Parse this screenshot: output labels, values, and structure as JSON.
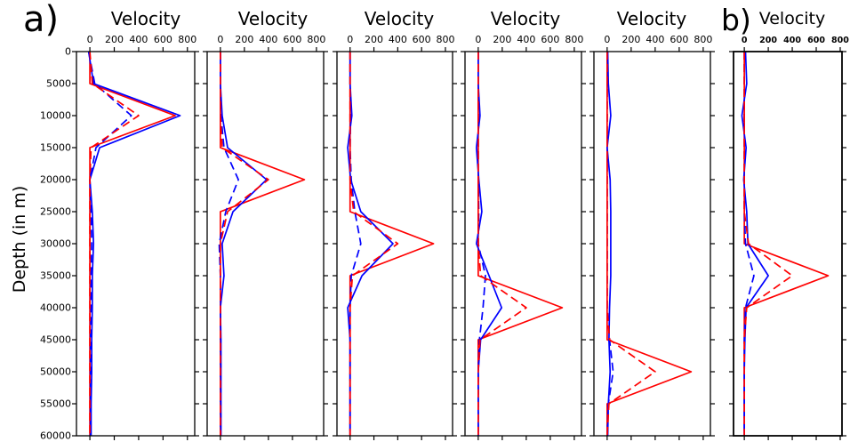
{
  "chart_data": [
    {
      "type": "line",
      "panel_label": "a)",
      "xlabel": "Velocity",
      "ylabel": "Depth (in m)",
      "xlim": [
        -110,
        860
      ],
      "ylim": [
        0,
        60000
      ],
      "y_inverted": true,
      "xticks": [
        0,
        200,
        400,
        600,
        800
      ],
      "yticks": [
        0,
        5000,
        10000,
        15000,
        20000,
        25000,
        30000,
        35000,
        40000,
        45000,
        50000,
        55000,
        60000
      ],
      "ytick_labels_visible": true,
      "depth": [
        0,
        5000,
        10000,
        15000,
        20000,
        25000,
        30000,
        35000,
        40000,
        45000,
        50000,
        55000,
        60000
      ],
      "series": [
        {
          "color": "#ff0000",
          "dashed": false,
          "values": [
            0,
            0,
            700,
            0,
            0,
            0,
            0,
            0,
            0,
            0,
            0,
            0,
            0
          ]
        },
        {
          "color": "#0000ff",
          "dashed": false,
          "values": [
            -10,
            30,
            740,
            80,
            0,
            20,
            30,
            20,
            20,
            15,
            15,
            10,
            10
          ]
        },
        {
          "color": "#0000ff",
          "dashed": true,
          "values": [
            -10,
            40,
            340,
            50,
            0,
            10,
            15,
            10,
            10,
            5,
            5,
            5,
            5
          ]
        },
        {
          "color": "#ff0000",
          "dashed": true,
          "values": [
            0,
            20,
            400,
            10,
            0,
            0,
            0,
            0,
            0,
            0,
            0,
            0,
            0
          ]
        }
      ]
    },
    {
      "type": "line",
      "xlabel": "Velocity",
      "xlim": [
        -110,
        860
      ],
      "ylim": [
        0,
        60000
      ],
      "y_inverted": true,
      "xticks": [
        0,
        200,
        400,
        600,
        800
      ],
      "yticks": [
        0,
        5000,
        10000,
        15000,
        20000,
        25000,
        30000,
        35000,
        40000,
        45000,
        50000,
        55000,
        60000
      ],
      "ytick_labels_visible": false,
      "depth": [
        0,
        5000,
        10000,
        15000,
        20000,
        25000,
        30000,
        35000,
        40000,
        45000,
        50000,
        55000,
        60000
      ],
      "series": [
        {
          "color": "#ff0000",
          "dashed": false,
          "values": [
            0,
            0,
            0,
            0,
            700,
            0,
            0,
            0,
            0,
            0,
            0,
            0,
            0
          ]
        },
        {
          "color": "#0000ff",
          "dashed": false,
          "values": [
            0,
            0,
            15,
            60,
            385,
            105,
            15,
            30,
            0,
            5,
            5,
            5,
            5
          ]
        },
        {
          "color": "#0000ff",
          "dashed": true,
          "values": [
            0,
            0,
            5,
            30,
            150,
            45,
            -10,
            0,
            0,
            0,
            0,
            0,
            0
          ]
        },
        {
          "color": "#ff0000",
          "dashed": true,
          "values": [
            0,
            0,
            0,
            15,
            400,
            60,
            0,
            0,
            0,
            0,
            0,
            0,
            0
          ]
        }
      ]
    },
    {
      "type": "line",
      "xlabel": "Velocity",
      "xlim": [
        -110,
        860
      ],
      "ylim": [
        0,
        60000
      ],
      "y_inverted": true,
      "xticks": [
        0,
        200,
        400,
        600,
        800
      ],
      "yticks": [
        0,
        5000,
        10000,
        15000,
        20000,
        25000,
        30000,
        35000,
        40000,
        45000,
        50000,
        55000,
        60000
      ],
      "ytick_labels_visible": false,
      "depth": [
        0,
        5000,
        10000,
        15000,
        20000,
        25000,
        30000,
        35000,
        40000,
        45000,
        50000,
        55000,
        60000
      ],
      "series": [
        {
          "color": "#ff0000",
          "dashed": false,
          "values": [
            0,
            0,
            0,
            0,
            0,
            0,
            700,
            0,
            0,
            0,
            0,
            0,
            0
          ]
        },
        {
          "color": "#0000ff",
          "dashed": false,
          "values": [
            0,
            0,
            15,
            -20,
            5,
            90,
            360,
            100,
            -20,
            0,
            0,
            0,
            0
          ]
        },
        {
          "color": "#0000ff",
          "dashed": true,
          "values": [
            0,
            0,
            5,
            0,
            10,
            40,
            90,
            10,
            0,
            0,
            0,
            0,
            0
          ]
        },
        {
          "color": "#ff0000",
          "dashed": true,
          "values": [
            0,
            0,
            0,
            0,
            0,
            30,
            400,
            20,
            0,
            0,
            0,
            0,
            0
          ]
        }
      ]
    },
    {
      "type": "line",
      "xlabel": "Velocity",
      "xlim": [
        -110,
        860
      ],
      "ylim": [
        0,
        60000
      ],
      "y_inverted": true,
      "xticks": [
        0,
        200,
        400,
        600,
        800
      ],
      "yticks": [
        0,
        5000,
        10000,
        15000,
        20000,
        25000,
        30000,
        35000,
        40000,
        45000,
        50000,
        55000,
        60000
      ],
      "ytick_labels_visible": false,
      "depth": [
        0,
        5000,
        10000,
        15000,
        20000,
        25000,
        30000,
        35000,
        40000,
        45000,
        50000,
        55000,
        60000
      ],
      "series": [
        {
          "color": "#ff0000",
          "dashed": false,
          "values": [
            0,
            0,
            0,
            0,
            0,
            0,
            0,
            0,
            700,
            0,
            0,
            0,
            0
          ]
        },
        {
          "color": "#0000ff",
          "dashed": false,
          "values": [
            0,
            0,
            15,
            -15,
            5,
            30,
            -15,
            90,
            195,
            20,
            0,
            0,
            0
          ]
        },
        {
          "color": "#0000ff",
          "dashed": true,
          "values": [
            0,
            0,
            0,
            0,
            0,
            5,
            0,
            60,
            40,
            10,
            0,
            0,
            0
          ]
        },
        {
          "color": "#ff0000",
          "dashed": true,
          "values": [
            0,
            0,
            0,
            0,
            0,
            0,
            0,
            20,
            400,
            15,
            0,
            0,
            0
          ]
        }
      ]
    },
    {
      "type": "line",
      "xlabel": "Velocity",
      "xlim": [
        -110,
        860
      ],
      "ylim": [
        0,
        60000
      ],
      "y_inverted": true,
      "xticks": [
        0,
        200,
        400,
        600,
        800
      ],
      "yticks": [
        0,
        5000,
        10000,
        15000,
        20000,
        25000,
        30000,
        35000,
        40000,
        45000,
        50000,
        55000,
        60000
      ],
      "ytick_labels_visible": false,
      "depth": [
        0,
        5000,
        10000,
        15000,
        20000,
        25000,
        30000,
        35000,
        40000,
        45000,
        50000,
        55000,
        60000
      ],
      "series": [
        {
          "color": "#ff0000",
          "dashed": false,
          "values": [
            0,
            0,
            0,
            0,
            0,
            0,
            0,
            0,
            0,
            0,
            700,
            0,
            0
          ]
        },
        {
          "color": "#0000ff",
          "dashed": false,
          "values": [
            5,
            10,
            30,
            0,
            25,
            30,
            30,
            30,
            20,
            15,
            25,
            10,
            5
          ]
        },
        {
          "color": "#0000ff",
          "dashed": true,
          "values": [
            0,
            0,
            0,
            0,
            0,
            0,
            0,
            0,
            0,
            20,
            50,
            10,
            0
          ]
        },
        {
          "color": "#ff0000",
          "dashed": true,
          "values": [
            0,
            0,
            0,
            0,
            0,
            0,
            0,
            0,
            0,
            20,
            400,
            15,
            0
          ]
        }
      ]
    },
    {
      "type": "line",
      "panel_label": "b)",
      "xlabel": "Velocity",
      "xlim": [
        -90,
        815
      ],
      "ylim": [
        0,
        60000
      ],
      "y_inverted": true,
      "xticks": [
        0,
        200,
        400,
        600,
        800
      ],
      "yticks": [
        0,
        5000,
        10000,
        15000,
        20000,
        25000,
        30000,
        35000,
        40000,
        45000,
        50000,
        55000,
        60000
      ],
      "ytick_labels_visible": false,
      "depth": [
        0,
        5000,
        10000,
        15000,
        20000,
        25000,
        30000,
        35000,
        40000,
        45000,
        50000,
        55000,
        60000
      ],
      "series": [
        {
          "color": "#ff0000",
          "dashed": false,
          "values": [
            0,
            0,
            0,
            0,
            0,
            0,
            0,
            700,
            0,
            0,
            0,
            0,
            0
          ]
        },
        {
          "color": "#0000ff",
          "dashed": false,
          "values": [
            10,
            20,
            -20,
            15,
            -5,
            20,
            30,
            200,
            15,
            5,
            0,
            0,
            0
          ]
        },
        {
          "color": "#0000ff",
          "dashed": true,
          "values": [
            0,
            0,
            0,
            0,
            0,
            0,
            10,
            80,
            10,
            0,
            0,
            0,
            0
          ]
        },
        {
          "color": "#ff0000",
          "dashed": true,
          "values": [
            0,
            0,
            0,
            0,
            0,
            0,
            35,
            400,
            20,
            0,
            0,
            0,
            0
          ]
        }
      ]
    }
  ]
}
